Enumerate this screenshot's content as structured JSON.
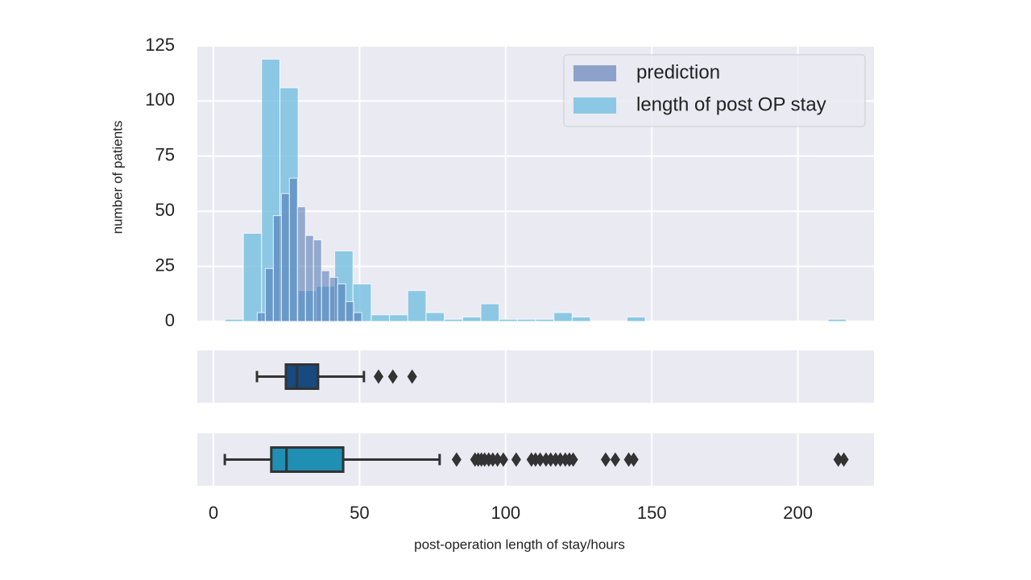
{
  "chart_data": [
    {
      "type": "histogram",
      "ylabel": "number of patients",
      "ylim": [
        0,
        125
      ],
      "yticks": [
        0,
        25,
        50,
        75,
        100,
        125
      ],
      "grid": true,
      "legend": "upper right",
      "series": [
        {
          "name": "prediction",
          "color": "#4c72b0",
          "bins": [
            15,
            17.75,
            20.5,
            23.25,
            26,
            28.75,
            31.5,
            34.25,
            37,
            39.75,
            42.5,
            45.25,
            48,
            50.75
          ],
          "values": [
            4,
            24,
            48,
            58,
            65,
            52,
            39,
            37,
            23,
            20,
            17,
            9,
            4
          ]
        },
        {
          "name": "length of post OP stay",
          "color": "#74bfe0",
          "bins": [
            4,
            10.25,
            16.5,
            22.75,
            29,
            35.25,
            41.5,
            47.75,
            54,
            60.25,
            66.5,
            72.75,
            79,
            85.25,
            91.5,
            97.75,
            104,
            110.25,
            116.5,
            122.75,
            129,
            135.25,
            141.5,
            147.75,
            154,
            160.25,
            166.5,
            172.75,
            179,
            185.25,
            191.5,
            197.75,
            204,
            210.25,
            216.5
          ],
          "values": [
            1,
            40,
            119,
            106,
            14,
            16,
            32,
            17,
            3,
            3,
            14,
            4,
            1,
            2,
            8,
            1,
            1,
            1,
            4,
            2,
            0,
            0,
            2,
            0,
            0,
            0,
            0,
            0,
            0,
            0,
            0,
            0,
            0,
            1
          ]
        }
      ]
    },
    {
      "type": "box",
      "color": "#174a7e",
      "whislo": 14.9,
      "q1": 24.8,
      "med": 28.6,
      "q3": 35.8,
      "whishi": 51.5,
      "fliers": [
        56.5,
        61.4,
        68
      ]
    },
    {
      "type": "box",
      "color": "#1f8fb4",
      "whislo": 3.9,
      "q1": 19.8,
      "med": 25,
      "q3": 44.4,
      "whishi": 77.4,
      "fliers": [
        83.2,
        89.5,
        90.6,
        91.7,
        92.8,
        94.2,
        95.6,
        97.2,
        99.2,
        103.6,
        108.8,
        110.2,
        111.8,
        113.8,
        115.4,
        117.1,
        118.7,
        120.4,
        121.8,
        123.1,
        134.2,
        137.5,
        142.1,
        143.8,
        213.8,
        215.7
      ],
      "xlabel": "post-operation length of stay/hours",
      "xlim": [
        -5.5,
        226
      ],
      "xticks": [
        0,
        50,
        100,
        150,
        200
      ]
    }
  ]
}
